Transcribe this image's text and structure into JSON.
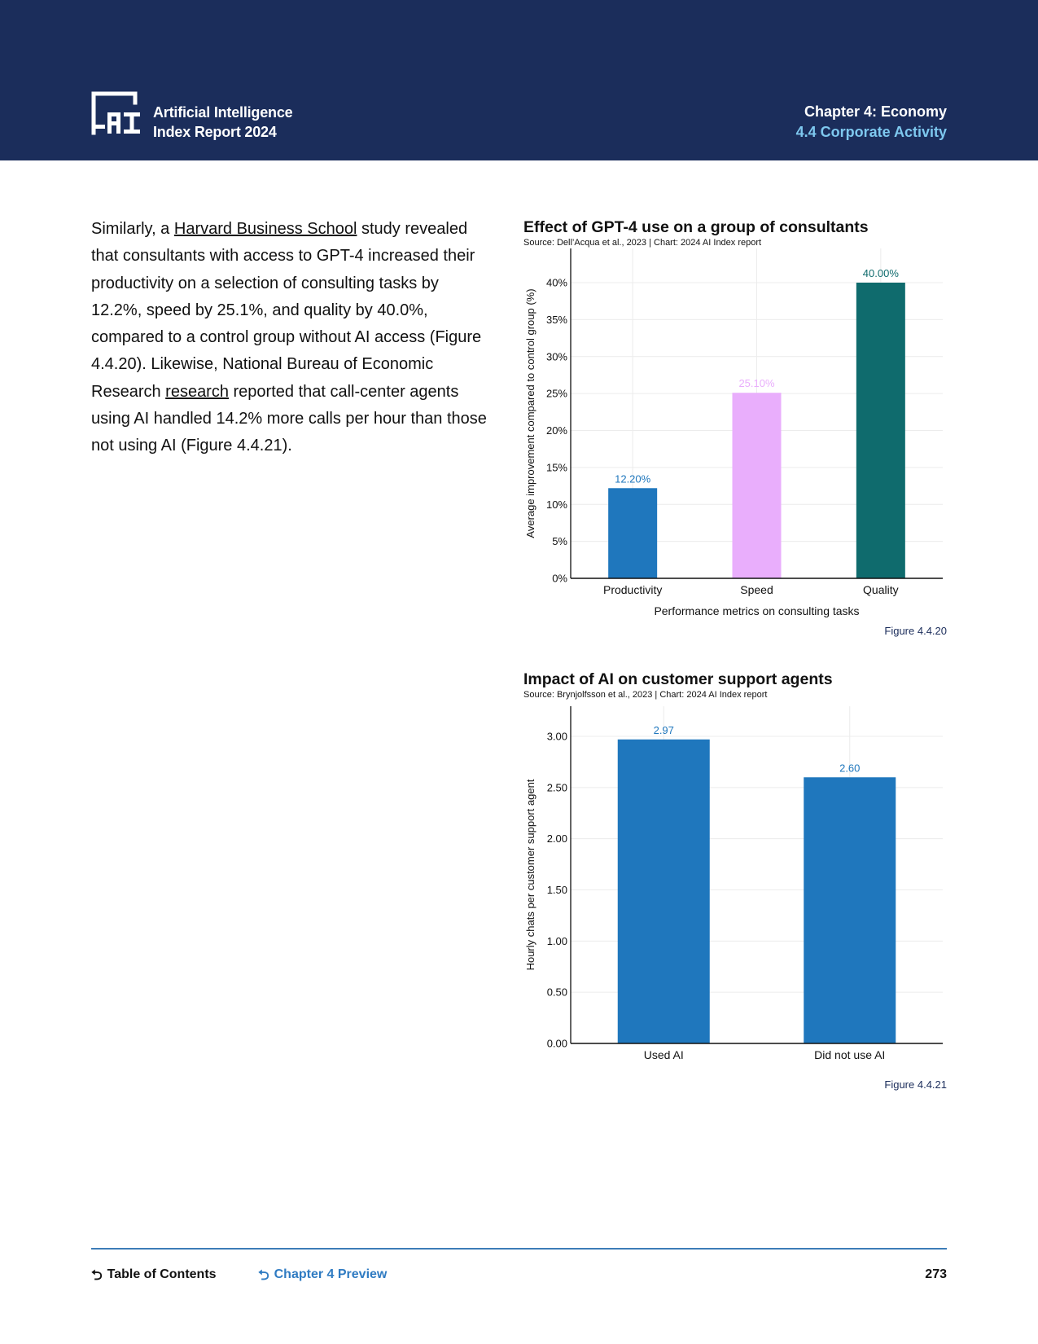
{
  "header": {
    "logo_lines": [
      "Artificial Intelligence",
      "Index Report 2024"
    ],
    "chapter": "Chapter 4: Economy",
    "section": "4.4 Corporate Activity"
  },
  "body": {
    "p1": "Similarly, a ",
    "link1": "Harvard Business School",
    "p2": " study revealed that consultants with access to GPT-4 increased their productivity on a selection of consulting tasks by 12.2%, speed by 25.1%, and quality by 40.0%, compared to a control group without AI access (Figure 4.4.20). Likewise, National Bureau of Economic Research ",
    "link2": "research",
    "p3": " reported that call-center agents using AI handled 14.2% more calls per hour than those not using AI (Figure 4.4.21)."
  },
  "chart_data": [
    {
      "type": "bar",
      "title": "Effect of GPT-4 use on a group of consultants",
      "source": "Source: Dell’Acqua et al., 2023 | Chart: 2024 AI Index report",
      "categories": [
        "Productivity",
        "Speed",
        "Quality"
      ],
      "values": [
        12.2,
        25.1,
        40.0
      ],
      "data_labels": [
        "12.20%",
        "25.10%",
        "40.00%"
      ],
      "colors": [
        "#1f77bd",
        "#e9aefc",
        "#0f6b6d"
      ],
      "xlabel": "Performance metrics on consulting tasks",
      "ylabel": "Average improvement compared to control group (%)",
      "ylim": [
        0,
        40
      ],
      "yticks": [
        "0%",
        "5%",
        "10%",
        "15%",
        "20%",
        "25%",
        "30%",
        "35%",
        "40%"
      ],
      "grid": true,
      "caption": "Figure 4.4.20"
    },
    {
      "type": "bar",
      "title": "Impact of AI on customer support agents",
      "source": "Source: Brynjolfsson et al., 2023 | Chart: 2024 AI Index report",
      "categories": [
        "Used AI",
        "Did not use AI"
      ],
      "values": [
        2.97,
        2.6
      ],
      "data_labels": [
        "2.97",
        "2.60"
      ],
      "colors": [
        "#1f77bd",
        "#1f77bd"
      ],
      "xlabel": "",
      "ylabel": "Hourly chats per customer support agent",
      "ylim": [
        0,
        3
      ],
      "yticks": [
        "0.00",
        "0.50",
        "1.00",
        "1.50",
        "2.00",
        "2.50",
        "3.00"
      ],
      "grid": true,
      "caption": "Figure 4.4.21"
    }
  ],
  "footer": {
    "toc": "Table of Contents",
    "preview": "Chapter 4 Preview",
    "page": "273",
    "rule_color": "#3d7cb8"
  }
}
